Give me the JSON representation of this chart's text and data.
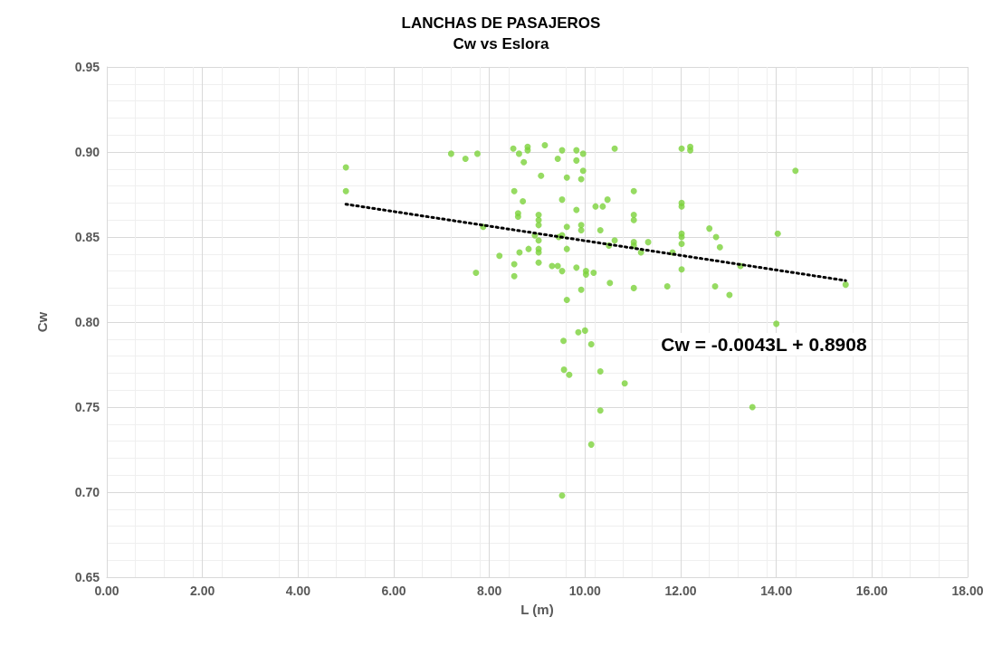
{
  "chart_data": {
    "type": "scatter",
    "title": "LANCHAS DE PASAJEROS",
    "subtitle": "Cw vs Eslora",
    "xlabel": "L (m)",
    "ylabel": "Cw",
    "xlim": [
      0,
      18
    ],
    "xticks": [
      {
        "value": 0,
        "label": "0.00"
      },
      {
        "value": 2,
        "label": "2.00"
      },
      {
        "value": 4,
        "label": "4.00"
      },
      {
        "value": 6,
        "label": "6.00"
      },
      {
        "value": 8,
        "label": "8.00"
      },
      {
        "value": 10,
        "label": "10.00"
      },
      {
        "value": 12,
        "label": "12.00"
      },
      {
        "value": 14,
        "label": "14.00"
      },
      {
        "value": 16,
        "label": "16.00"
      },
      {
        "value": 18,
        "label": "18.00"
      }
    ],
    "ylim": [
      0.65,
      0.95
    ],
    "yticks": [
      {
        "value": 0.65,
        "label": "0.65"
      },
      {
        "value": 0.7,
        "label": "0.70"
      },
      {
        "value": 0.75,
        "label": "0.75"
      },
      {
        "value": 0.8,
        "label": "0.80"
      },
      {
        "value": 0.85,
        "label": "0.85"
      },
      {
        "value": 0.9,
        "label": "0.90"
      },
      {
        "value": 0.95,
        "label": "0.95"
      }
    ],
    "grid": true,
    "marker": "circle",
    "annotations": [
      "Cw = -0.0043L + 0.8908"
    ],
    "series": [
      {
        "color": "#7cd23b",
        "x": [
          5.0,
          5.0,
          7.2,
          7.5,
          7.75,
          7.72,
          7.87,
          8.21,
          8.5,
          8.62,
          8.72,
          8.8,
          8.8,
          9.16,
          9.08,
          8.52,
          8.7,
          8.6,
          8.6,
          8.52,
          8.52,
          8.63,
          8.82,
          8.95,
          9.03,
          9.03,
          9.03,
          9.03,
          9.03,
          9.03,
          9.03,
          9.31,
          9.43,
          9.52,
          9.43,
          9.82,
          9.82,
          9.96,
          9.96,
          9.62,
          9.92,
          10.62,
          12.02,
          12.2,
          12.2,
          11.02,
          9.52,
          10.47,
          10.22,
          10.37,
          9.82,
          12.02,
          12.02,
          11.02,
          11.02,
          9.62,
          9.92,
          9.92,
          10.32,
          12.6,
          12.74,
          12.82,
          14.03,
          12.02,
          12.02,
          12.02,
          9.45,
          9.52,
          10.62,
          10.5,
          11.02,
          11.02,
          11.32,
          11.17,
          11.83,
          9.62,
          9.52,
          9.82,
          10.02,
          10.02,
          10.18,
          12.02,
          13.25,
          10.52,
          9.92,
          9.62,
          11.02,
          11.72,
          12.72,
          13.02,
          15.45,
          14.4,
          14.0,
          9.55,
          9.86,
          10.0,
          10.13,
          9.56,
          9.67,
          10.32,
          10.83,
          10.32,
          10.13,
          9.52,
          13.5
        ],
        "values": [
          0.891,
          0.877,
          0.899,
          0.896,
          0.899,
          0.829,
          0.856,
          0.839,
          0.902,
          0.899,
          0.894,
          0.903,
          0.901,
          0.904,
          0.886,
          0.877,
          0.871,
          0.864,
          0.862,
          0.834,
          0.827,
          0.841,
          0.843,
          0.851,
          0.848,
          0.843,
          0.841,
          0.835,
          0.863,
          0.86,
          0.857,
          0.833,
          0.833,
          0.901,
          0.896,
          0.901,
          0.895,
          0.899,
          0.889,
          0.885,
          0.884,
          0.902,
          0.902,
          0.903,
          0.901,
          0.877,
          0.872,
          0.872,
          0.868,
          0.868,
          0.866,
          0.87,
          0.868,
          0.863,
          0.86,
          0.856,
          0.857,
          0.854,
          0.854,
          0.855,
          0.85,
          0.844,
          0.852,
          0.852,
          0.85,
          0.846,
          0.85,
          0.851,
          0.848,
          0.845,
          0.847,
          0.845,
          0.847,
          0.841,
          0.841,
          0.843,
          0.83,
          0.832,
          0.83,
          0.828,
          0.829,
          0.831,
          0.833,
          0.823,
          0.819,
          0.813,
          0.82,
          0.821,
          0.821,
          0.816,
          0.822,
          0.889,
          0.799,
          0.789,
          0.794,
          0.795,
          0.787,
          0.772,
          0.769,
          0.771,
          0.764,
          0.748,
          0.728,
          0.698,
          0.75
        ]
      },
      {
        "type": "line",
        "color": "#000000",
        "line_style": "dotted",
        "marker": "none",
        "x": [
          5.0,
          15.45
        ],
        "values": [
          0.8693,
          0.8244
        ]
      }
    ]
  }
}
